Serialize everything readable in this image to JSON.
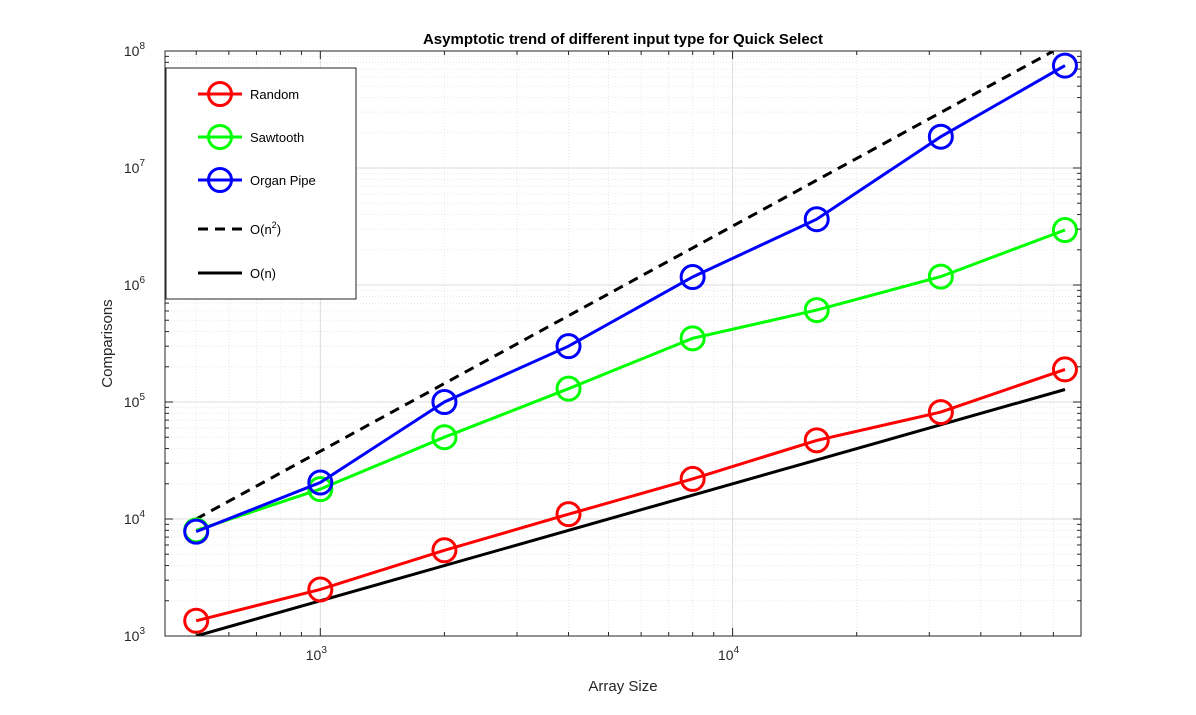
{
  "chart_data": {
    "type": "line",
    "title": "Asymptotic trend of different input type for Quick Select",
    "xlabel": "Array Size",
    "ylabel": "Comparisons",
    "xscale": "log",
    "yscale": "log",
    "xlim": [
      420,
      70000
    ],
    "ylim": [
      1000,
      100000000
    ],
    "grid": true,
    "minor_grid": true,
    "legend_position": "top-left",
    "x_ticks": [
      {
        "value": 1000,
        "base": "10",
        "exp": "3"
      },
      {
        "value": 10000,
        "base": "10",
        "exp": "4"
      }
    ],
    "y_ticks": [
      {
        "value": 1000,
        "base": "10",
        "exp": "3"
      },
      {
        "value": 10000,
        "base": "10",
        "exp": "4"
      },
      {
        "value": 100000,
        "base": "10",
        "exp": "5"
      },
      {
        "value": 1000000,
        "base": "10",
        "exp": "6"
      },
      {
        "value": 10000000,
        "base": "10",
        "exp": "7"
      },
      {
        "value": 100000000,
        "base": "10",
        "exp": "8"
      }
    ],
    "series": [
      {
        "name": "Random",
        "color": "#ff0000",
        "style": "solid",
        "marker": "circle",
        "x": [
          500,
          1000,
          2000,
          4000,
          8000,
          16000,
          32000,
          64000
        ],
        "values": [
          1350,
          2500,
          5400,
          11000,
          22000,
          47000,
          82000,
          190000
        ]
      },
      {
        "name": "Sawtooth",
        "color": "#00ff00",
        "style": "solid",
        "marker": "circle",
        "x": [
          500,
          1000,
          2000,
          4000,
          8000,
          16000,
          32000,
          64000
        ],
        "values": [
          8000,
          18000,
          50000,
          130000,
          350000,
          610000,
          1180000,
          2950000
        ]
      },
      {
        "name": "Organ Pipe",
        "color": "#0000ff",
        "style": "solid",
        "marker": "circle",
        "x": [
          500,
          1000,
          2000,
          4000,
          8000,
          16000,
          32000,
          64000
        ],
        "values": [
          7800,
          20500,
          100000,
          300000,
          1170000,
          3650000,
          18500000,
          75000000
        ]
      },
      {
        "name_base": "O(n",
        "name_sup": "2",
        "name_tail": ")",
        "color": "#000000",
        "style": "dashed",
        "marker": "none",
        "x": [
          500,
          60000
        ],
        "values": [
          10000,
          100000000
        ]
      },
      {
        "name": "O(n)",
        "color": "#000000",
        "style": "solid",
        "marker": "none",
        "x": [
          500,
          64000
        ],
        "values": [
          1000,
          128000
        ]
      }
    ]
  }
}
